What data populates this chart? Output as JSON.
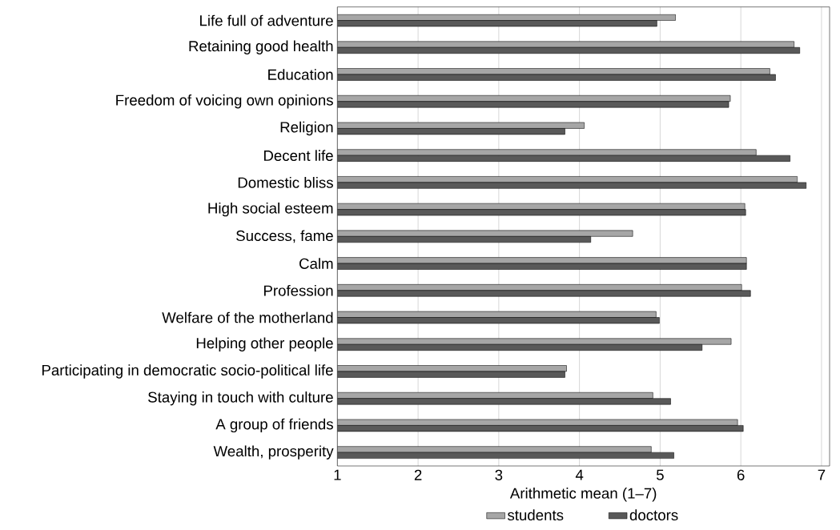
{
  "chart_data": {
    "type": "bar",
    "orientation": "horizontal",
    "xlabel": "Arithmetic mean (1–7)",
    "categories": [
      "Life full of adventure",
      "Retaining good health",
      "Education",
      "Freedom of voicing own opinions",
      "Religion",
      "Decent life",
      "Domestic bliss",
      "High social esteem",
      "Success, fame",
      "Calm",
      "Profession",
      "Welfare of the motherland",
      "Helping other people",
      "Participating in democratic socio-political life",
      "Staying in touch with culture",
      "A group of friends",
      "Wealth, prosperity"
    ],
    "series": [
      {
        "name": "students",
        "color": "#a6a6a6",
        "values": [
          5.19,
          6.66,
          6.36,
          5.87,
          4.06,
          6.19,
          6.7,
          6.05,
          4.66,
          6.07,
          6.01,
          4.95,
          5.88,
          3.84,
          4.91,
          5.96,
          4.89
        ]
      },
      {
        "name": "doctors",
        "color": "#595959",
        "values": [
          4.96,
          6.73,
          6.43,
          5.85,
          3.82,
          6.61,
          6.81,
          6.06,
          4.14,
          6.07,
          6.12,
          4.99,
          5.52,
          3.82,
          5.13,
          6.03,
          5.17
        ]
      }
    ],
    "xlim": [
      1,
      7.1
    ],
    "xticks": [
      1,
      2,
      3,
      4,
      5,
      6,
      7
    ],
    "grid": "x",
    "legend": "bottom"
  }
}
